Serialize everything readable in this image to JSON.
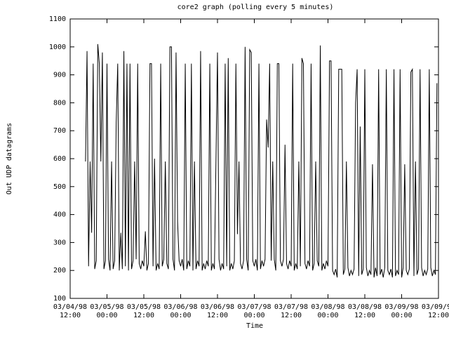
{
  "chart_data": {
    "type": "line",
    "title": "core2 graph (polling every 5 minutes)",
    "ylabel": "Out UDP datagrams",
    "xlabel": "Time",
    "color": "#000000",
    "xlim": [
      0,
      120
    ],
    "xticks": [
      {
        "value": 0,
        "label": [
          "03/04/98",
          "12:00"
        ]
      },
      {
        "value": 12,
        "label": [
          "03/05/98",
          "00:00"
        ]
      },
      {
        "value": 24,
        "label": [
          "03/05/98",
          "12:00"
        ]
      },
      {
        "value": 36,
        "label": [
          "03/06/98",
          "00:00"
        ]
      },
      {
        "value": 48,
        "label": [
          "03/06/98",
          "12:00"
        ]
      },
      {
        "value": 60,
        "label": [
          "03/07/98",
          "00:00"
        ]
      },
      {
        "value": 72,
        "label": [
          "03/07/98",
          "12:00"
        ]
      },
      {
        "value": 84,
        "label": [
          "03/08/98",
          "00:00"
        ]
      },
      {
        "value": 96,
        "label": [
          "03/08/98",
          "12:00"
        ]
      },
      {
        "value": 108,
        "label": [
          "03/09/98",
          "00:00"
        ]
      },
      {
        "value": 120,
        "label": [
          "03/09/98",
          "12:00"
        ]
      }
    ],
    "ylim": [
      100,
      1100
    ],
    "yticks": [
      100,
      200,
      300,
      400,
      500,
      600,
      700,
      800,
      900,
      1000,
      1100
    ],
    "x": [
      5,
      5.5,
      6,
      6.5,
      7,
      7.5,
      8,
      8.5,
      9,
      9.5,
      10,
      10.5,
      11,
      11.5,
      12,
      12.5,
      13,
      13.5,
      14,
      14.5,
      15,
      15.5,
      16,
      16.5,
      17,
      17.5,
      18,
      18.5,
      19,
      19.5,
      20,
      20.5,
      21,
      21.5,
      22,
      22.5,
      23,
      23.5,
      24,
      24.5,
      25,
      25.5,
      26,
      26.5,
      27,
      27.5,
      28,
      28.5,
      29,
      29.5,
      30,
      30.5,
      31,
      31.5,
      32,
      32.5,
      33,
      33.5,
      34,
      34.5,
      35,
      35.5,
      36,
      36.5,
      37,
      37.5,
      38,
      38.5,
      39,
      39.5,
      40,
      40.5,
      41,
      41.5,
      42,
      42.5,
      43,
      43.5,
      44,
      44.5,
      45,
      45.5,
      46,
      46.5,
      47,
      47.5,
      48,
      48.5,
      49,
      49.5,
      50,
      50.5,
      51,
      51.5,
      52,
      52.5,
      53,
      53.5,
      54,
      54.5,
      55,
      55.5,
      56,
      56.5,
      57,
      57.5,
      58,
      58.5,
      59,
      59.5,
      60,
      60.5,
      61,
      61.5,
      62,
      62.5,
      63,
      63.5,
      64,
      64.5,
      65,
      65.5,
      66,
      66.5,
      67,
      67.5,
      68,
      68.5,
      69,
      69.5,
      70,
      70.5,
      71,
      71.5,
      72,
      72.5,
      73,
      73.5,
      74,
      74.5,
      75,
      75.5,
      76,
      76.5,
      77,
      77.5,
      78,
      78.5,
      79,
      79.5,
      80,
      80.5,
      81,
      81.5,
      82,
      82.5,
      83,
      83.5,
      84,
      84.5,
      85,
      85.5,
      86,
      86.5,
      87,
      87.5,
      88,
      88.5,
      89,
      89.5,
      90,
      90.5,
      91,
      91.5,
      92,
      92.5,
      93,
      93.5,
      94,
      94.5,
      95,
      95.5,
      96,
      96.5,
      97,
      97.5,
      98,
      98.5,
      99,
      99.5,
      100,
      100.5,
      101,
      101.5,
      102,
      102.5,
      103,
      103.5,
      104,
      104.5,
      105,
      105.5,
      106,
      106.5,
      107,
      107.5,
      108,
      108.5,
      109,
      109.5,
      110,
      110.5,
      111,
      111.5,
      112,
      112.5,
      113,
      113.5,
      114,
      114.5,
      115,
      115.5,
      116,
      116.5,
      117,
      117.5,
      118,
      118.5,
      119,
      119.5
    ],
    "values": [
      590,
      985,
      215,
      590,
      335,
      940,
      205,
      235,
      1010,
      940,
      590,
      980,
      205,
      235,
      940,
      240,
      200,
      590,
      205,
      235,
      730,
      940,
      200,
      335,
      205,
      985,
      215,
      940,
      200,
      940,
      205,
      235,
      590,
      240,
      940,
      225,
      205,
      235,
      215,
      340,
      200,
      225,
      940,
      940,
      215,
      600,
      200,
      225,
      205,
      940,
      215,
      240,
      590,
      225,
      205,
      1000,
      1000,
      240,
      200,
      980,
      375,
      235,
      215,
      240,
      200,
      940,
      205,
      235,
      215,
      940,
      200,
      590,
      205,
      235,
      215,
      985,
      200,
      225,
      205,
      235,
      215,
      940,
      200,
      225,
      205,
      590,
      980,
      240,
      200,
      225,
      205,
      940,
      215,
      960,
      200,
      225,
      205,
      235,
      940,
      330,
      590,
      225,
      205,
      235,
      1000,
      240,
      200,
      990,
      980,
      235,
      215,
      240,
      200,
      940,
      205,
      235,
      215,
      240,
      740,
      640,
      940,
      235,
      590,
      240,
      200,
      940,
      940,
      235,
      215,
      240,
      650,
      225,
      205,
      235,
      215,
      940,
      200,
      225,
      205,
      590,
      215,
      960,
      940,
      225,
      205,
      235,
      215,
      940,
      200,
      225,
      590,
      235,
      215,
      1005,
      200,
      225,
      205,
      235,
      215,
      950,
      950,
      200,
      185,
      205,
      175,
      920,
      920,
      920,
      185,
      205,
      590,
      210,
      180,
      200,
      185,
      205,
      800,
      920,
      180,
      715,
      185,
      205,
      920,
      210,
      180,
      200,
      185,
      580,
      175,
      210,
      180,
      920,
      185,
      205,
      175,
      210,
      920,
      200,
      185,
      205,
      175,
      920,
      180,
      200,
      185,
      920,
      175,
      210,
      580,
      200,
      185,
      205,
      910,
      920,
      180,
      590,
      185,
      205,
      920,
      210,
      180,
      200,
      185,
      205,
      920,
      210,
      180,
      200,
      185,
      870
    ]
  }
}
